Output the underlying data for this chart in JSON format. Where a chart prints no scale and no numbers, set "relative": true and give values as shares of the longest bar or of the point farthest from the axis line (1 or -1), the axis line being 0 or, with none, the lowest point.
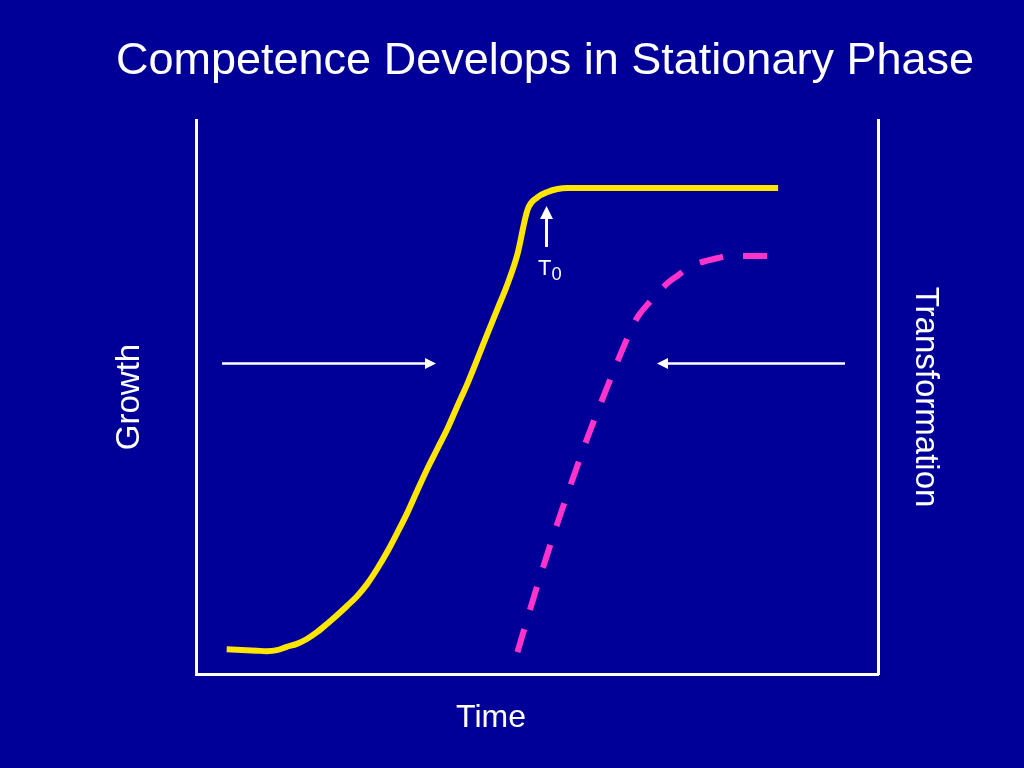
{
  "chart_data": {
    "type": "line",
    "title": "Competence Develops in Stationary Phase",
    "xlabel": "Time",
    "ylabel": "Growth",
    "y2label": "Transformation",
    "relative": true,
    "tick_labels": false,
    "categories": [
      null,
      null,
      null,
      null,
      null,
      null,
      null,
      null,
      null,
      null,
      null,
      null,
      null,
      null,
      null,
      null,
      null,
      null,
      null,
      null,
      null,
      null,
      null,
      null,
      null,
      null,
      null,
      null,
      null,
      null,
      null,
      null,
      null,
      null,
      null,
      null,
      null,
      null,
      null,
      null,
      null,
      null,
      null,
      null,
      null,
      null,
      null,
      null,
      null,
      null,
      null,
      null,
      null,
      null,
      null,
      null,
      null,
      null,
      null,
      null,
      null,
      null,
      null,
      null,
      null,
      null,
      null,
      null,
      null
    ],
    "series": [
      {
        "color": "#ffe600",
        "values": [
          null,
          null,
          null,
          0.051,
          0.05,
          0.049,
          0.048,
          0.047,
          0.049,
          0.056,
          0.062,
          0.072,
          0.086,
          0.103,
          0.121,
          0.14,
          0.16,
          0.185,
          0.216,
          0.251,
          0.29,
          0.331,
          0.377,
          0.422,
          0.463,
          0.504,
          0.551,
          0.597,
          0.648,
          0.7,
          0.751,
          0.802,
          0.864,
          0.955,
          0.981,
          0.992,
          0.998,
          1,
          1,
          1,
          1,
          1,
          1,
          1,
          1,
          1,
          1,
          1,
          1,
          1,
          1,
          1,
          1,
          1,
          1,
          1,
          1,
          1,
          1,
          null,
          null,
          null,
          null,
          null,
          null,
          null,
          null,
          null,
          null
        ]
      },
      {
        "color": "#ff33cc",
        "line_style": "dashed",
        "values": [
          null,
          null,
          null,
          null,
          null,
          null,
          null,
          null,
          null,
          null,
          null,
          null,
          null,
          null,
          null,
          null,
          null,
          null,
          null,
          null,
          null,
          null,
          null,
          null,
          null,
          null,
          null,
          null,
          null,
          null,
          null,
          null,
          0.045,
          0.115,
          0.183,
          0.248,
          0.311,
          0.371,
          0.43,
          0.487,
          0.541,
          0.593,
          0.644,
          0.693,
          0.735,
          0.761,
          0.784,
          0.805,
          0.82,
          0.835,
          0.845,
          0.851,
          0.856,
          0.86,
          0.86,
          0.86,
          0.86,
          0.86,
          null,
          null,
          null,
          null,
          null,
          null,
          null,
          null,
          null,
          null,
          null
        ]
      }
    ],
    "annotations": [
      "T$_{0}$"
    ]
  }
}
